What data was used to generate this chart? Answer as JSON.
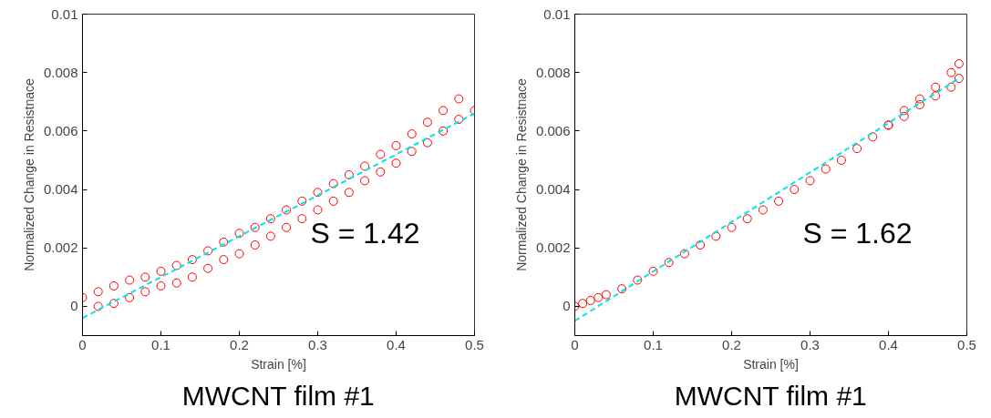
{
  "chart_data": [
    {
      "type": "scatter",
      "xlabel": "Strain [%]",
      "ylabel": "Normalized Change in Resistnace",
      "xlim": [
        0,
        0.5
      ],
      "ylim": [
        -0.001,
        0.01
      ],
      "xticks": [
        0,
        0.1,
        0.2,
        0.3,
        0.4,
        0.5
      ],
      "yticks": [
        0,
        0.002,
        0.004,
        0.006,
        0.008,
        0.01
      ],
      "grid": false,
      "annotations": [
        "S = 1.42",
        "MWCNT film #1"
      ],
      "series": [
        {
          "color": "#ff0000",
          "marker": "circle",
          "x": [
            0,
            0.02,
            0.04,
            0.06,
            0.08,
            0.1,
            0.12,
            0.14,
            0.16,
            0.18,
            0.2,
            0.22,
            0.24,
            0.26,
            0.28,
            0.3,
            0.32,
            0.34,
            0.36,
            0.38,
            0.4,
            0.42,
            0.44,
            0.46,
            0.48
          ],
          "values": [
            0.0003,
            0.0005,
            0.0007,
            0.0009,
            0.001,
            0.0012,
            0.0014,
            0.0016,
            0.0019,
            0.0022,
            0.0025,
            0.0027,
            0.003,
            0.0033,
            0.0036,
            0.0039,
            0.0042,
            0.0045,
            0.0048,
            0.0052,
            0.0055,
            0.0059,
            0.0063,
            0.0067,
            0.0071
          ]
        },
        {
          "color": "#ff0000",
          "marker": "circle",
          "x": [
            0.02,
            0.04,
            0.06,
            0.08,
            0.1,
            0.12,
            0.14,
            0.16,
            0.18,
            0.2,
            0.22,
            0.24,
            0.26,
            0.28,
            0.3,
            0.32,
            0.34,
            0.36,
            0.38,
            0.4,
            0.42,
            0.44,
            0.46,
            0.48,
            0.5
          ],
          "values": [
            0.0,
            0.0001,
            0.0003,
            0.0005,
            0.0007,
            0.0008,
            0.001,
            0.0013,
            0.0016,
            0.0018,
            0.0021,
            0.0024,
            0.0027,
            0.003,
            0.0033,
            0.0036,
            0.0039,
            0.0043,
            0.0046,
            0.0049,
            0.0053,
            0.0056,
            0.006,
            0.0064,
            0.0067
          ]
        },
        {
          "type": "line",
          "color": "#00e5e5",
          "line_style": "dashed",
          "x": [
            0,
            0.5
          ],
          "values": [
            -0.0004,
            0.0066
          ]
        }
      ]
    },
    {
      "type": "scatter",
      "xlabel": "Strain [%]",
      "ylabel": "Normalized Change in Resistnace",
      "xlim": [
        0,
        0.5
      ],
      "ylim": [
        -0.001,
        0.01
      ],
      "xticks": [
        0,
        0.1,
        0.2,
        0.3,
        0.4,
        0.5
      ],
      "yticks": [
        0,
        0.002,
        0.004,
        0.006,
        0.008,
        0.01
      ],
      "grid": false,
      "annotations": [
        "S = 1.62",
        "MWCNT film #1"
      ],
      "series": [
        {
          "color": "#ff0000",
          "marker": "circle",
          "x": [
            0,
            0.01,
            0.02,
            0.03,
            0.04,
            0.06,
            0.08,
            0.1,
            0.12,
            0.14,
            0.16,
            0.18,
            0.2,
            0.22,
            0.24,
            0.26,
            0.28,
            0.3,
            0.32,
            0.34,
            0.36,
            0.38,
            0.4,
            0.42,
            0.44,
            0.46,
            0.48,
            0.49
          ],
          "values": [
            0.0,
            0.0001,
            0.0002,
            0.0003,
            0.0004,
            0.0006,
            0.0009,
            0.0012,
            0.0015,
            0.0018,
            0.0021,
            0.0024,
            0.0027,
            0.003,
            0.0033,
            0.0036,
            0.004,
            0.0043,
            0.0047,
            0.005,
            0.0054,
            0.0058,
            0.0062,
            0.0065,
            0.0069,
            0.0072,
            0.0075,
            0.0078
          ]
        },
        {
          "color": "#ff0000",
          "marker": "circle",
          "x": [
            0.4,
            0.42,
            0.44,
            0.46,
            0.48,
            0.49
          ],
          "values": [
            0.0062,
            0.0067,
            0.0071,
            0.0075,
            0.008,
            0.0083
          ]
        },
        {
          "type": "line",
          "color": "#00e5e5",
          "line_style": "dashed",
          "x": [
            0,
            0.49
          ],
          "values": [
            -0.0005,
            0.0078
          ]
        }
      ]
    }
  ]
}
